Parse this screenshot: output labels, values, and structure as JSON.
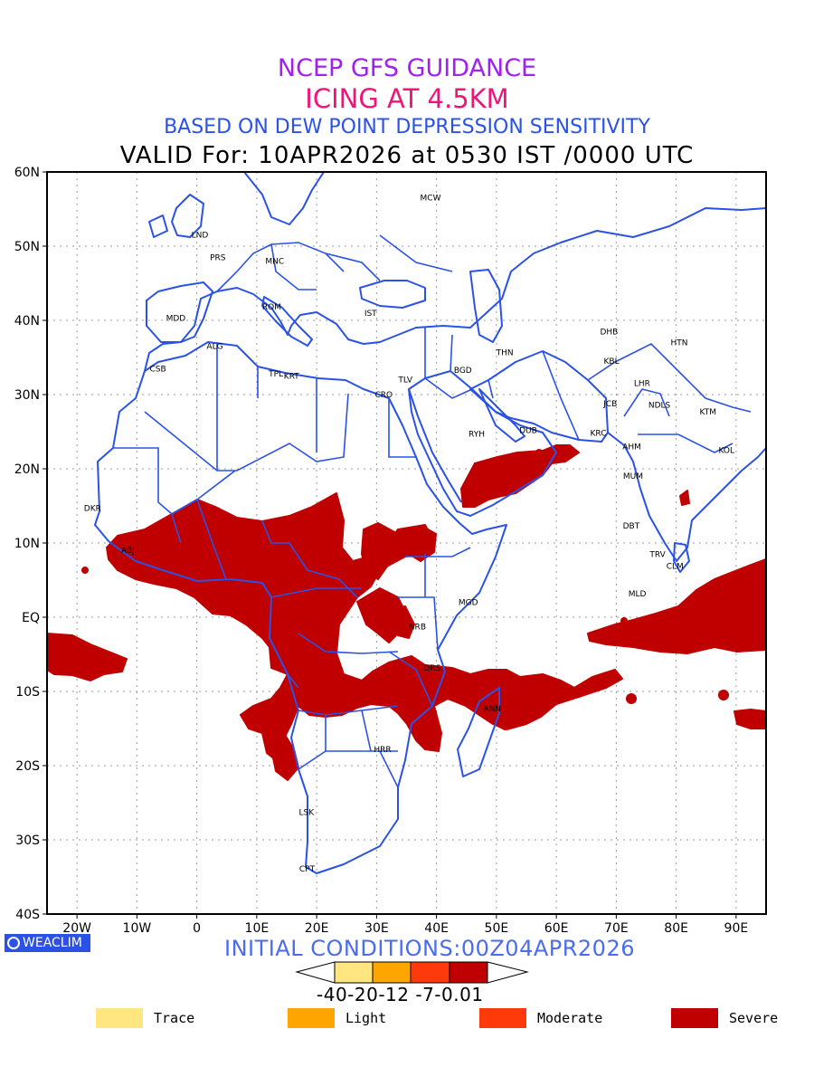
{
  "header": {
    "line1": "NCEP GFS GUIDANCE",
    "line2": "ICING AT 4.5KM",
    "line3": "BASED ON DEW POINT DEPRESSION SENSITIVITY",
    "line4": "VALID For: 10APR2026 at 0530 IST /0000 UTC"
  },
  "axes": {
    "lat_labels": [
      "60N",
      "50N",
      "40N",
      "30N",
      "20N",
      "10N",
      "EQ",
      "10S",
      "20S",
      "30S",
      "40S"
    ],
    "lon_labels": [
      "20W",
      "10W",
      "0",
      "10E",
      "20E",
      "30E",
      "40E",
      "50E",
      "60E",
      "70E",
      "80E",
      "90E"
    ]
  },
  "stations": [
    {
      "code": "MCW",
      "lon": 39,
      "lat": 56.5
    },
    {
      "code": "LND",
      "lon": 0.5,
      "lat": 51.5
    },
    {
      "code": "PRS",
      "lon": 3.5,
      "lat": 48.5
    },
    {
      "code": "MNC",
      "lon": 13,
      "lat": 48
    },
    {
      "code": "ROM",
      "lon": 12.5,
      "lat": 41.8
    },
    {
      "code": "MDD",
      "lon": -3.5,
      "lat": 40.3
    },
    {
      "code": "IST",
      "lon": 29,
      "lat": 41
    },
    {
      "code": "ALG",
      "lon": 3,
      "lat": 36.5
    },
    {
      "code": "CSB",
      "lon": -6.5,
      "lat": 33.5
    },
    {
      "code": "TPL",
      "lon": 13.2,
      "lat": 32.8
    },
    {
      "code": "KRT",
      "lon": 15.8,
      "lat": 32.5
    },
    {
      "code": "TLV",
      "lon": 34.8,
      "lat": 32
    },
    {
      "code": "CRO",
      "lon": 31.2,
      "lat": 30
    },
    {
      "code": "BGD",
      "lon": 44.4,
      "lat": 33.3
    },
    {
      "code": "THN",
      "lon": 51.4,
      "lat": 35.7
    },
    {
      "code": "RYH",
      "lon": 46.7,
      "lat": 24.7
    },
    {
      "code": "DUB",
      "lon": 55.3,
      "lat": 25.2
    },
    {
      "code": "KRC",
      "lon": 67,
      "lat": 24.8
    },
    {
      "code": "DHB",
      "lon": 68.8,
      "lat": 38.5
    },
    {
      "code": "HTN",
      "lon": 80.5,
      "lat": 37
    },
    {
      "code": "KBL",
      "lon": 69.2,
      "lat": 34.5
    },
    {
      "code": "LHR",
      "lon": 74.3,
      "lat": 31.5
    },
    {
      "code": "JCB",
      "lon": 69,
      "lat": 28.8
    },
    {
      "code": "NDLS",
      "lon": 77.2,
      "lat": 28.6
    },
    {
      "code": "KTM",
      "lon": 85.3,
      "lat": 27.7
    },
    {
      "code": "AHM",
      "lon": 72.6,
      "lat": 23
    },
    {
      "code": "KOL",
      "lon": 88.4,
      "lat": 22.5
    },
    {
      "code": "MUM",
      "lon": 72.8,
      "lat": 19
    },
    {
      "code": "DBT",
      "lon": 72.5,
      "lat": 12.3
    },
    {
      "code": "TRV",
      "lon": 76.9,
      "lat": 8.5
    },
    {
      "code": "CLM",
      "lon": 79.8,
      "lat": 6.9
    },
    {
      "code": "MLD",
      "lon": 73.5,
      "lat": 3.2
    },
    {
      "code": "MGD",
      "lon": 45.3,
      "lat": 2
    },
    {
      "code": "NRB",
      "lon": 36.8,
      "lat": -1.3
    },
    {
      "code": "DRS",
      "lon": 39.3,
      "lat": -6.8
    },
    {
      "code": "ANN",
      "lon": 49.3,
      "lat": -12.3
    },
    {
      "code": "HRR",
      "lon": 31,
      "lat": -17.8
    },
    {
      "code": "LSK",
      "lon": 18.3,
      "lat": -26.3
    },
    {
      "code": "CPT",
      "lon": 18.4,
      "lat": -33.9
    },
    {
      "code": "DKR",
      "lon": -17.4,
      "lat": 14.7
    },
    {
      "code": "ABJ",
      "lon": -11.5,
      "lat": 9
    }
  ],
  "footer": {
    "logo": "WEACLIM",
    "initial_conditions": "INITIAL CONDITIONS:00Z04APR2026",
    "scale_values": "-40-20-12 -7-0.01"
  },
  "legend": [
    {
      "label": "Trace",
      "color": "#ffe680"
    },
    {
      "label": "Light",
      "color": "#ffa500"
    },
    {
      "label": "Moderate",
      "color": "#ff3a0a"
    },
    {
      "label": "Severe",
      "color": "#c00000"
    }
  ],
  "colors": {
    "severe": "#c00000",
    "coast": "#2b52e6",
    "grid": "#9a9a9a"
  }
}
